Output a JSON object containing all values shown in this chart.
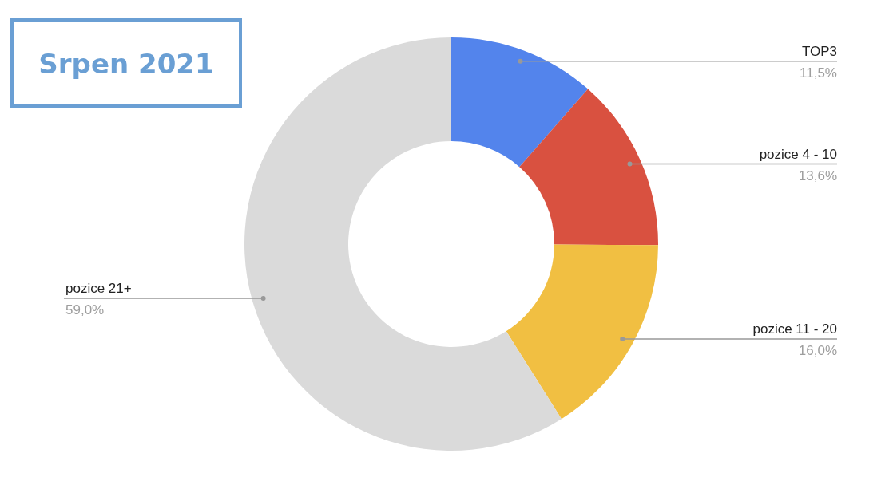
{
  "chart_data": {
    "type": "donut",
    "title": "Srpen 2021",
    "categories": [
      "TOP3",
      "pozice 4 - 10",
      "pozice 11 - 20",
      "pozice 21+"
    ],
    "values": [
      11.5,
      13.6,
      16.0,
      59.0
    ],
    "value_labels": [
      "11,5%",
      "13,6%",
      "16,0%",
      "59,0%"
    ],
    "colors": [
      "#5384ec",
      "#d95140",
      "#f1bf42",
      "#dadada"
    ]
  }
}
